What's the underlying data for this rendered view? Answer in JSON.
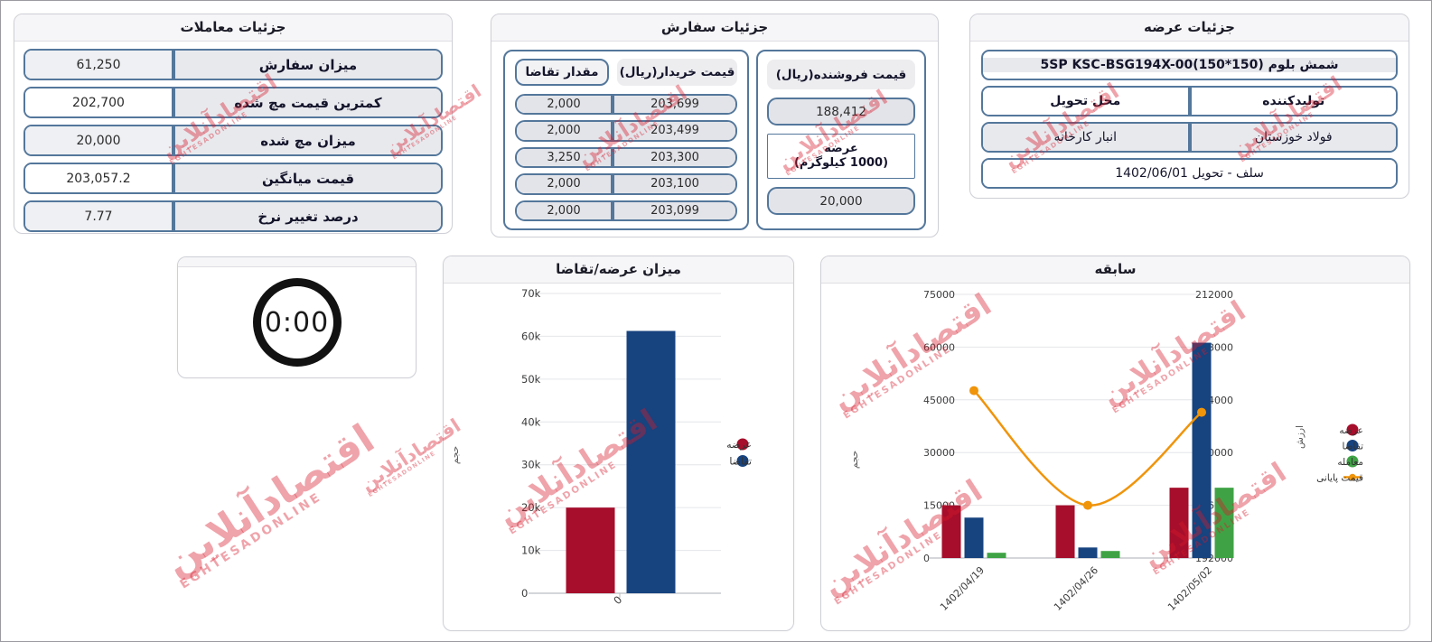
{
  "watermark": {
    "line1": "اقتصادآنلاین",
    "line2": "EGHTESADONLINE"
  },
  "trades_card": {
    "title": "جزئیات معاملات",
    "rows": [
      {
        "label": "میزان سفارش",
        "value": "61,250"
      },
      {
        "label": "کمترین قیمت مچ شده",
        "value": "202,700"
      },
      {
        "label": "میزان مچ شده",
        "value": "20,000"
      },
      {
        "label": "قیمت میانگین",
        "value": "203,057.2"
      },
      {
        "label": "درصد تغییر نرخ",
        "value": "7.77"
      }
    ]
  },
  "orders_card": {
    "title": "جزئیات سفارش",
    "buy_table": {
      "amount_header": "مقدار تقاضا",
      "price_header": "قیمت خریدار(ریال)",
      "rows": [
        {
          "amount": "2,000",
          "price": "203,699"
        },
        {
          "amount": "2,000",
          "price": "203,499"
        },
        {
          "amount": "3,250",
          "price": "203,300"
        },
        {
          "amount": "2,000",
          "price": "203,100"
        },
        {
          "amount": "2,000",
          "price": "203,099"
        }
      ]
    },
    "sell_panel": {
      "header": "قیمت فروشنده(ریال)",
      "price": "188,412",
      "supply_label_line1": "عرضه",
      "supply_label_line2": "(1000 کیلوگرم)",
      "amount": "20,000"
    }
  },
  "supply_card": {
    "title": "جزئیات عرضه",
    "product": "5SP KSC-BSG194X-00(150*150) شمش بلوم",
    "producer_header": "تولیدکننده",
    "delivery_header": "محل تحویل",
    "producer": "فولاد خوزستان",
    "delivery": "انبار کارخانه",
    "settlement": "سلف - تحویل 1402/06/01"
  },
  "timer": {
    "value": "0:00"
  },
  "chart_data": [
    {
      "type": "bar",
      "title": "میزان عرضه/تقاضا",
      "categories": [
        "0"
      ],
      "series": [
        {
          "name": "عرضه",
          "kind": "bar",
          "color": "#a60e2b",
          "values": [
            20000
          ]
        },
        {
          "name": "تقاضا",
          "kind": "bar",
          "color": "#17437f",
          "values": [
            61250
          ]
        }
      ],
      "ylabel": "حجم",
      "ylim": [
        0,
        70000
      ],
      "yticks": [
        0,
        10000,
        20000,
        30000,
        40000,
        50000,
        60000,
        70000
      ],
      "ytick_labels": [
        "0",
        "10k",
        "20k",
        "30k",
        "40k",
        "50k",
        "60k",
        "70k"
      ],
      "grid": true,
      "legend_position": "right"
    },
    {
      "type": "bar+line",
      "title": "سابقه",
      "categories": [
        "1402/04/19",
        "1402/04/26",
        "1402/05/02"
      ],
      "series": [
        {
          "name": "عرضه",
          "kind": "bar",
          "color": "#a60e2b",
          "values": [
            15000,
            15000,
            20000
          ]
        },
        {
          "name": "تقاضا",
          "kind": "bar",
          "color": "#17437f",
          "values": [
            11500,
            3000,
            61250
          ]
        },
        {
          "name": "معامله",
          "kind": "bar",
          "color": "#3fa345",
          "values": [
            1500,
            2000,
            20000
          ]
        },
        {
          "name": "قیمت پایانی",
          "kind": "line",
          "axis": "right",
          "color": "#f0940a",
          "values": [
            204700,
            196000,
            203057
          ]
        }
      ],
      "ylabel_left": "حجم",
      "ylabel_right": "ارزش",
      "ylim_left": [
        0,
        75000
      ],
      "ylim_right": [
        192000,
        212000
      ],
      "yticks_left": [
        0,
        15000,
        30000,
        45000,
        60000,
        75000
      ],
      "yticks_right": [
        192000,
        196000,
        200000,
        204000,
        208000,
        212000
      ],
      "grid": true,
      "legend_position": "right"
    }
  ]
}
